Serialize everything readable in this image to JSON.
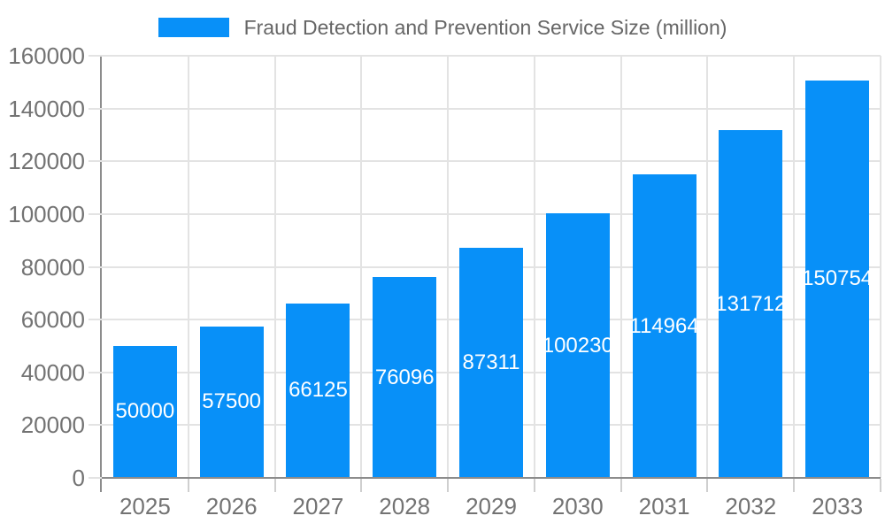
{
  "legend": {
    "label": "Fraud Detection and Prevention Service Size (million)"
  },
  "chart_data": {
    "type": "bar",
    "title": "Fraud Detection and Prevention Service Size (million)",
    "categories": [
      "2025",
      "2026",
      "2027",
      "2028",
      "2029",
      "2030",
      "2031",
      "2032",
      "2033"
    ],
    "values": [
      50000,
      57500,
      66125,
      76096,
      87311,
      100230,
      114964,
      131712,
      150754
    ],
    "bar_labels": [
      "50000",
      "57500",
      "66125",
      "76096",
      "87311",
      "100230",
      "114964",
      "131712",
      "150754"
    ],
    "xlabel": "",
    "ylabel": "",
    "ylim": [
      0,
      160000
    ],
    "ytick_step": 20000,
    "ytick_labels": [
      "0",
      "20000",
      "40000",
      "60000",
      "80000",
      "100000",
      "120000",
      "140000",
      "160000"
    ],
    "grid": true,
    "legend_position": "top",
    "colors": {
      "bar": "#0890f8",
      "bar_label": "#ffffff",
      "grid": "#e3e3e3",
      "axis": "#8c8c8c",
      "tick_minor": "#cfcfcf",
      "axis_text": "#737373",
      "legend_text": "#666666",
      "background": "#ffffff"
    }
  }
}
